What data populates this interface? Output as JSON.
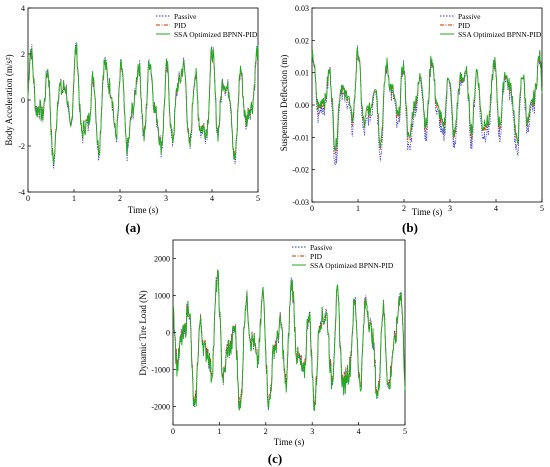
{
  "figure": {
    "legend_labels": [
      "Passive",
      "PID",
      "SSA Optimized BPNN-PID"
    ],
    "series_colors": {
      "passive": "#3333cc",
      "pid": "#cc3300",
      "ssa": "#22aa22"
    }
  },
  "chart_data": [
    {
      "type": "line",
      "panel_label": "(a)",
      "xlabel": "Time (s)",
      "ylabel": "Body Acceleration (m/s²)",
      "xlim": [
        0,
        5
      ],
      "ylim": [
        -4,
        4
      ],
      "xticks": [
        "0",
        "1",
        "2",
        "3",
        "4",
        "5"
      ],
      "yticks": [
        "-4",
        "-2",
        "0",
        "2",
        "4"
      ],
      "legend_position": "top-right",
      "series": [
        {
          "name": "Passive",
          "style": "dotted",
          "x_range": [
            0,
            5
          ],
          "y_range": [
            -3.0,
            2.5
          ]
        },
        {
          "name": "PID",
          "style": "dash-dot",
          "x_range": [
            0,
            5
          ],
          "y_range": [
            -2.8,
            2.4
          ]
        },
        {
          "name": "SSA Optimized BPNN-PID",
          "style": "solid",
          "x_range": [
            0,
            5
          ],
          "y_range": [
            -2.9,
            2.5
          ]
        }
      ]
    },
    {
      "type": "line",
      "panel_label": "(b)",
      "xlabel": "Time (s)",
      "ylabel": "Suspension Deflection (m)",
      "xlim": [
        0,
        5
      ],
      "ylim": [
        -0.03,
        0.03
      ],
      "xticks": [
        "0",
        "1",
        "2",
        "3",
        "4",
        "5"
      ],
      "yticks": [
        "-0.03",
        "-0.02",
        "-0.01",
        "0.00",
        "0.01",
        "0.02",
        "0.03"
      ],
      "legend_position": "top-right",
      "series": [
        {
          "name": "Passive",
          "style": "dotted",
          "x_range": [
            0,
            5
          ],
          "y_range": [
            -0.019,
            0.019
          ]
        },
        {
          "name": "PID",
          "style": "dash-dot",
          "x_range": [
            0,
            5
          ],
          "y_range": [
            -0.015,
            0.018
          ]
        },
        {
          "name": "SSA Optimized BPNN-PID",
          "style": "solid",
          "x_range": [
            0,
            5
          ],
          "y_range": [
            -0.014,
            0.018
          ]
        }
      ]
    },
    {
      "type": "line",
      "panel_label": "(c)",
      "xlabel": "Time (s)",
      "ylabel": "Dynamic Tire Load (N)",
      "xlim": [
        0,
        5
      ],
      "ylim": [
        -2500,
        2500
      ],
      "xticks": [
        "0",
        "1",
        "2",
        "3",
        "4",
        "5"
      ],
      "yticks": [
        "-2000",
        "-1000",
        "0",
        "1000",
        "2000"
      ],
      "legend_position": "top-right",
      "series": [
        {
          "name": "Passive",
          "style": "dotted",
          "x_range": [
            0,
            5
          ],
          "y_range": [
            -2100,
            1700
          ]
        },
        {
          "name": "PID",
          "style": "dash-dot",
          "x_range": [
            0,
            5
          ],
          "y_range": [
            -2000,
            1650
          ]
        },
        {
          "name": "SSA Optimized BPNN-PID",
          "style": "solid",
          "x_range": [
            0,
            5
          ],
          "y_range": [
            -2150,
            1700
          ]
        }
      ]
    }
  ]
}
